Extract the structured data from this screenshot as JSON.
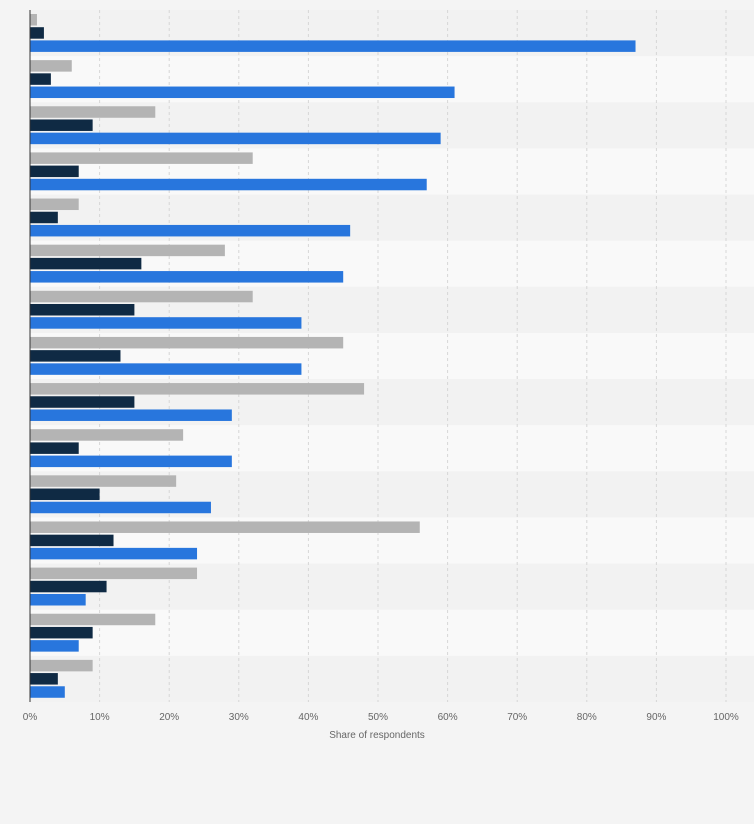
{
  "chart_data": {
    "type": "bar",
    "orientation": "horizontal",
    "xlabel": "Share of respondents",
    "xlim": [
      0,
      100
    ],
    "tick_labels": [
      "0%",
      "10%",
      "20%",
      "30%",
      "40%",
      "50%",
      "60%",
      "70%",
      "80%",
      "90%",
      "100%"
    ],
    "grid": true,
    "series": [
      {
        "color": "#b4b4b4",
        "values": [
          1,
          6,
          18,
          32,
          7,
          28,
          32,
          45,
          48,
          22,
          21,
          56,
          24,
          18,
          9
        ]
      },
      {
        "color": "#0f2a44",
        "values": [
          2,
          3,
          9,
          7,
          4,
          16,
          15,
          13,
          15,
          7,
          10,
          12,
          11,
          9,
          4
        ]
      },
      {
        "color": "#2876dd",
        "values": [
          87,
          61,
          59,
          57,
          46,
          45,
          39,
          39,
          29,
          29,
          26,
          24,
          8,
          7,
          5
        ]
      }
    ]
  }
}
